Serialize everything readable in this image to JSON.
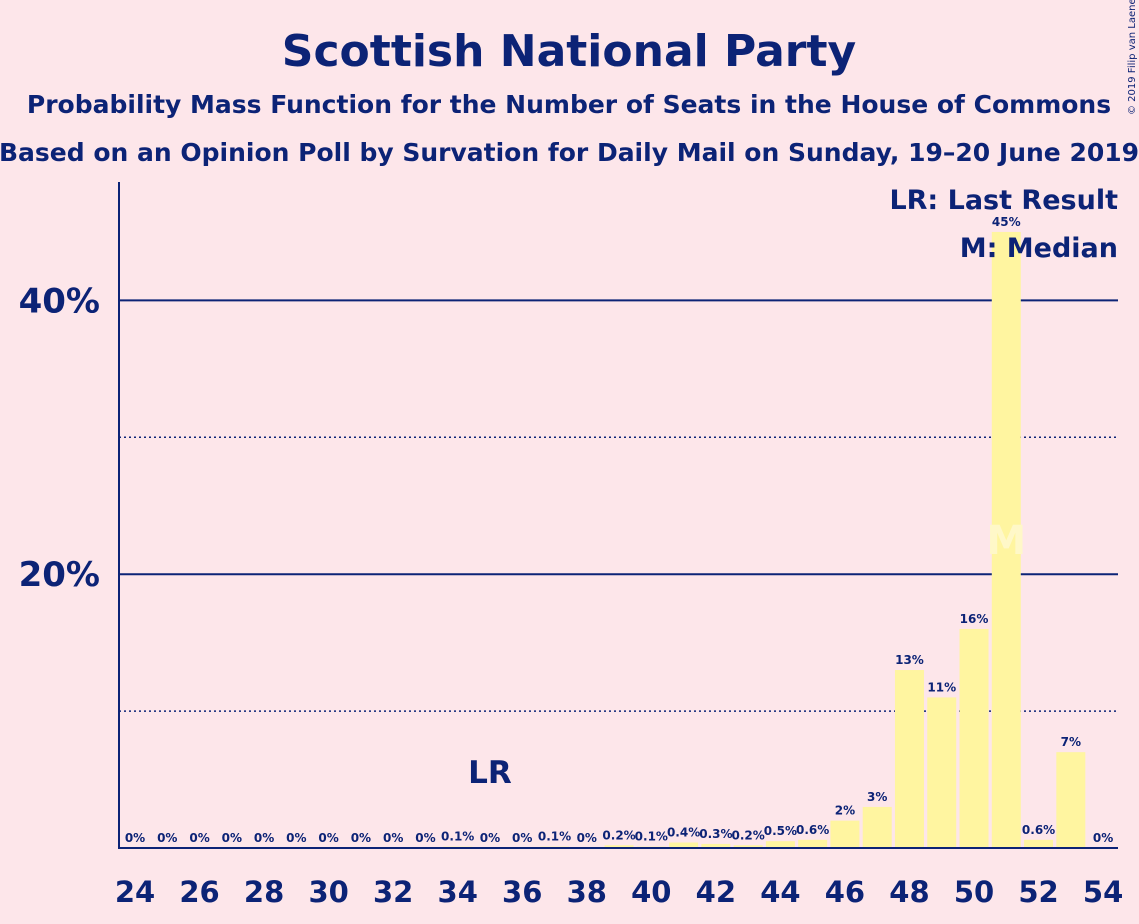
{
  "chart_data": {
    "type": "bar",
    "title": "Scottish National Party",
    "subtitle1": "Probability Mass Function for the Number of Seats in the House of Commons",
    "subtitle2": "Based on an Opinion Poll by Survation for Daily Mail on Sunday, 19–20 June 2019",
    "copyright": "© 2019 Filip van Laenen",
    "xlabel": "",
    "ylabel": "",
    "x": [
      24,
      25,
      26,
      27,
      28,
      29,
      30,
      31,
      32,
      33,
      34,
      35,
      36,
      37,
      38,
      39,
      40,
      41,
      42,
      43,
      44,
      45,
      46,
      47,
      48,
      49,
      50,
      51,
      52,
      53,
      54
    ],
    "values": [
      0,
      0,
      0,
      0,
      0,
      0,
      0,
      0,
      0,
      0,
      0.1,
      0,
      0,
      0.1,
      0,
      0.2,
      0.1,
      0.4,
      0.3,
      0.2,
      0.5,
      0.6,
      2,
      3,
      13,
      11,
      16,
      45,
      0.6,
      7,
      0
    ],
    "labels": [
      "0%",
      "0%",
      "0%",
      "0%",
      "0%",
      "0%",
      "0%",
      "0%",
      "0%",
      "0%",
      "0.1%",
      "0%",
      "0%",
      "0.1%",
      "0%",
      "0.2%",
      "0.1%",
      "0.4%",
      "0.3%",
      "0.2%",
      "0.5%",
      "0.6%",
      "2%",
      "3%",
      "13%",
      "11%",
      "16%",
      "45%",
      "0.6%",
      "7%",
      "0%"
    ],
    "x_ticks": [
      24,
      26,
      28,
      30,
      32,
      34,
      36,
      38,
      40,
      42,
      44,
      46,
      48,
      50,
      52,
      54
    ],
    "y_ticks_major": [
      20,
      40
    ],
    "y_tick_labels": [
      "20%",
      "40%"
    ],
    "y_ticks_minor": [
      10,
      30
    ],
    "ylim": [
      0,
      48.5
    ],
    "last_result": 35,
    "last_result_label": "LR",
    "median": 51,
    "median_label": "M",
    "legend": [
      "LR: Last Result",
      "M: Median"
    ],
    "legend_position": "top-right",
    "colors": {
      "bar": "#fff5a0",
      "text": "#0c2376",
      "background": "#fde6ea"
    }
  }
}
